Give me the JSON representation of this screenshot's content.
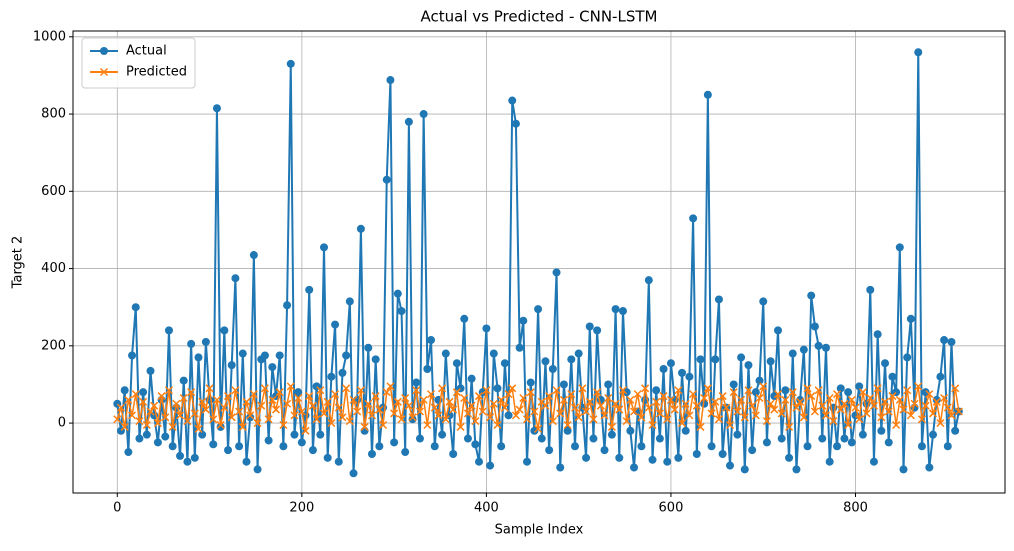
{
  "chart_data": {
    "type": "line",
    "title": "Actual vs Predicted - CNN-LSTM",
    "x_label": "Sample Index",
    "y_label": "Target 2",
    "x": [
      0,
      4,
      8,
      12,
      16,
      20,
      24,
      28,
      32,
      36,
      40,
      44,
      48,
      52,
      56,
      60,
      64,
      68,
      72,
      76,
      80,
      84,
      88,
      92,
      96,
      100,
      104,
      108,
      112,
      116,
      120,
      124,
      128,
      132,
      136,
      140,
      144,
      148,
      152,
      156,
      160,
      164,
      168,
      172,
      176,
      180,
      184,
      188,
      192,
      196,
      200,
      204,
      208,
      212,
      216,
      220,
      224,
      228,
      232,
      236,
      240,
      244,
      248,
      252,
      256,
      260,
      264,
      268,
      272,
      276,
      280,
      284,
      288,
      292,
      296,
      300,
      304,
      308,
      312,
      316,
      320,
      324,
      328,
      332,
      336,
      340,
      344,
      348,
      352,
      356,
      360,
      364,
      368,
      372,
      376,
      380,
      384,
      388,
      392,
      396,
      400,
      404,
      408,
      412,
      416,
      420,
      424,
      428,
      432,
      436,
      440,
      444,
      448,
      452,
      456,
      460,
      464,
      468,
      472,
      476,
      480,
      484,
      488,
      492,
      496,
      500,
      504,
      508,
      512,
      516,
      520,
      524,
      528,
      532,
      536,
      540,
      544,
      548,
      552,
      556,
      560,
      564,
      568,
      572,
      576,
      580,
      584,
      588,
      592,
      596,
      600,
      604,
      608,
      612,
      616,
      620,
      624,
      628,
      632,
      636,
      640,
      644,
      648,
      652,
      656,
      660,
      664,
      668,
      672,
      676,
      680,
      684,
      688,
      692,
      696,
      700,
      704,
      708,
      712,
      716,
      720,
      724,
      728,
      732,
      736,
      740,
      744,
      748,
      752,
      756,
      760,
      764,
      768,
      772,
      776,
      780,
      784,
      788,
      792,
      796,
      800,
      804,
      808,
      812,
      816,
      820,
      824,
      828,
      832,
      836,
      840,
      844,
      848,
      852,
      856,
      860,
      864,
      868,
      872,
      876,
      880,
      884,
      888,
      892,
      896,
      900,
      904,
      908,
      912
    ],
    "series": [
      {
        "name": "Actual",
        "color": "#1f77b4",
        "marker": "circle",
        "values": [
          50,
          -20,
          85,
          -75,
          175,
          300,
          -40,
          80,
          -30,
          135,
          20,
          -50,
          60,
          -35,
          240,
          -60,
          40,
          -85,
          110,
          -100,
          205,
          -90,
          170,
          -30,
          210,
          60,
          -55,
          815,
          -10,
          240,
          -70,
          150,
          375,
          -60,
          180,
          -100,
          15,
          435,
          -120,
          165,
          175,
          -45,
          145,
          70,
          175,
          -60,
          305,
          930,
          -30,
          80,
          -50,
          20,
          345,
          -70,
          95,
          -30,
          455,
          -90,
          120,
          255,
          -100,
          130,
          175,
          315,
          -130,
          60,
          503,
          -20,
          195,
          -80,
          165,
          -60,
          40,
          630,
          888,
          -50,
          335,
          290,
          -75,
          780,
          10,
          105,
          -40,
          800,
          140,
          215,
          -60,
          60,
          -30,
          180,
          20,
          -80,
          155,
          90,
          270,
          -40,
          115,
          -55,
          -100,
          80,
          245,
          -110,
          180,
          90,
          -60,
          155,
          20,
          835,
          775,
          195,
          265,
          -100,
          105,
          -20,
          295,
          -40,
          160,
          -70,
          140,
          390,
          -115,
          100,
          -20,
          165,
          -60,
          180,
          40,
          -90,
          250,
          -40,
          240,
          60,
          -70,
          100,
          -30,
          295,
          -90,
          290,
          80,
          -20,
          -115,
          30,
          -60,
          60,
          370,
          -95,
          85,
          -40,
          140,
          -100,
          155,
          60,
          -90,
          130,
          -20,
          120,
          530,
          -80,
          165,
          50,
          850,
          -60,
          165,
          320,
          -80,
          40,
          -110,
          100,
          -30,
          170,
          -120,
          150,
          -70,
          80,
          110,
          315,
          -50,
          160,
          70,
          240,
          -40,
          85,
          -90,
          180,
          -120,
          60,
          190,
          -60,
          330,
          250,
          200,
          -40,
          195,
          -100,
          40,
          -60,
          90,
          -40,
          80,
          -50,
          20,
          95,
          -30,
          50,
          345,
          -100,
          230,
          -20,
          155,
          -50,
          120,
          80,
          455,
          -120,
          170,
          270,
          40,
          960,
          -60,
          80,
          -115,
          -30,
          60,
          120,
          215,
          -60,
          210,
          -20,
          30
        ]
      },
      {
        "name": "Predicted",
        "color": "#ff7f0e",
        "marker": "x",
        "values": [
          10,
          40,
          -10,
          60,
          20,
          75,
          5,
          55,
          -5,
          30,
          45,
          0,
          70,
          15,
          85,
          -10,
          50,
          20,
          65,
          5,
          80,
          25,
          -15,
          55,
          35,
          90,
          10,
          60,
          -5,
          40,
          70,
          15,
          85,
          30,
          -10,
          55,
          20,
          75,
          0,
          45,
          90,
          10,
          60,
          35,
          80,
          -5,
          50,
          95,
          20,
          65,
          30,
          -20,
          70,
          45,
          10,
          85,
          25,
          55,
          0,
          75,
          40,
          15,
          90,
          5,
          60,
          30,
          85,
          -10,
          50,
          20,
          70,
          35,
          -5,
          80,
          95,
          25,
          55,
          10,
          65,
          45,
          15,
          85,
          30,
          60,
          -5,
          75,
          40,
          20,
          90,
          10,
          55,
          35,
          80,
          -10,
          65,
          25,
          45,
          5,
          70,
          30,
          85,
          15,
          50,
          -5,
          60,
          40,
          75,
          90,
          20,
          35,
          65,
          10,
          80,
          30,
          -15,
          55,
          45,
          70,
          5,
          85,
          25,
          60,
          -5,
          75,
          40,
          15,
          90,
          30,
          55,
          10,
          80,
          45,
          20,
          65,
          -10,
          50,
          35,
          85,
          5,
          60,
          30,
          75,
          15,
          90,
          40,
          -5,
          55,
          25,
          70,
          10,
          60,
          35,
          85,
          0,
          50,
          20,
          75,
          45,
          -10,
          65,
          90,
          25,
          55,
          10,
          70,
          40,
          -5,
          80,
          30,
          60,
          15,
          85,
          45,
          20,
          65,
          95,
          5,
          50,
          35,
          75,
          25,
          60,
          -10,
          80,
          40,
          55,
          15,
          90,
          70,
          30,
          85,
          45,
          20,
          65,
          5,
          75,
          35,
          50,
          -5,
          60,
          40,
          10,
          80,
          25,
          65,
          45,
          90,
          15,
          55,
          30,
          70,
          -5,
          60,
          35,
          85,
          20,
          50,
          95,
          10,
          45,
          75,
          25,
          55,
          0,
          65,
          40,
          20,
          90,
          30
        ]
      }
    ],
    "xlim": [
      -48,
      962
    ],
    "ylim": [
      -181,
      1015
    ],
    "xticks": [
      0,
      200,
      400,
      600,
      800
    ],
    "yticks": [
      0,
      200,
      400,
      600,
      800,
      1000
    ],
    "grid": true,
    "legend": "upper left"
  }
}
